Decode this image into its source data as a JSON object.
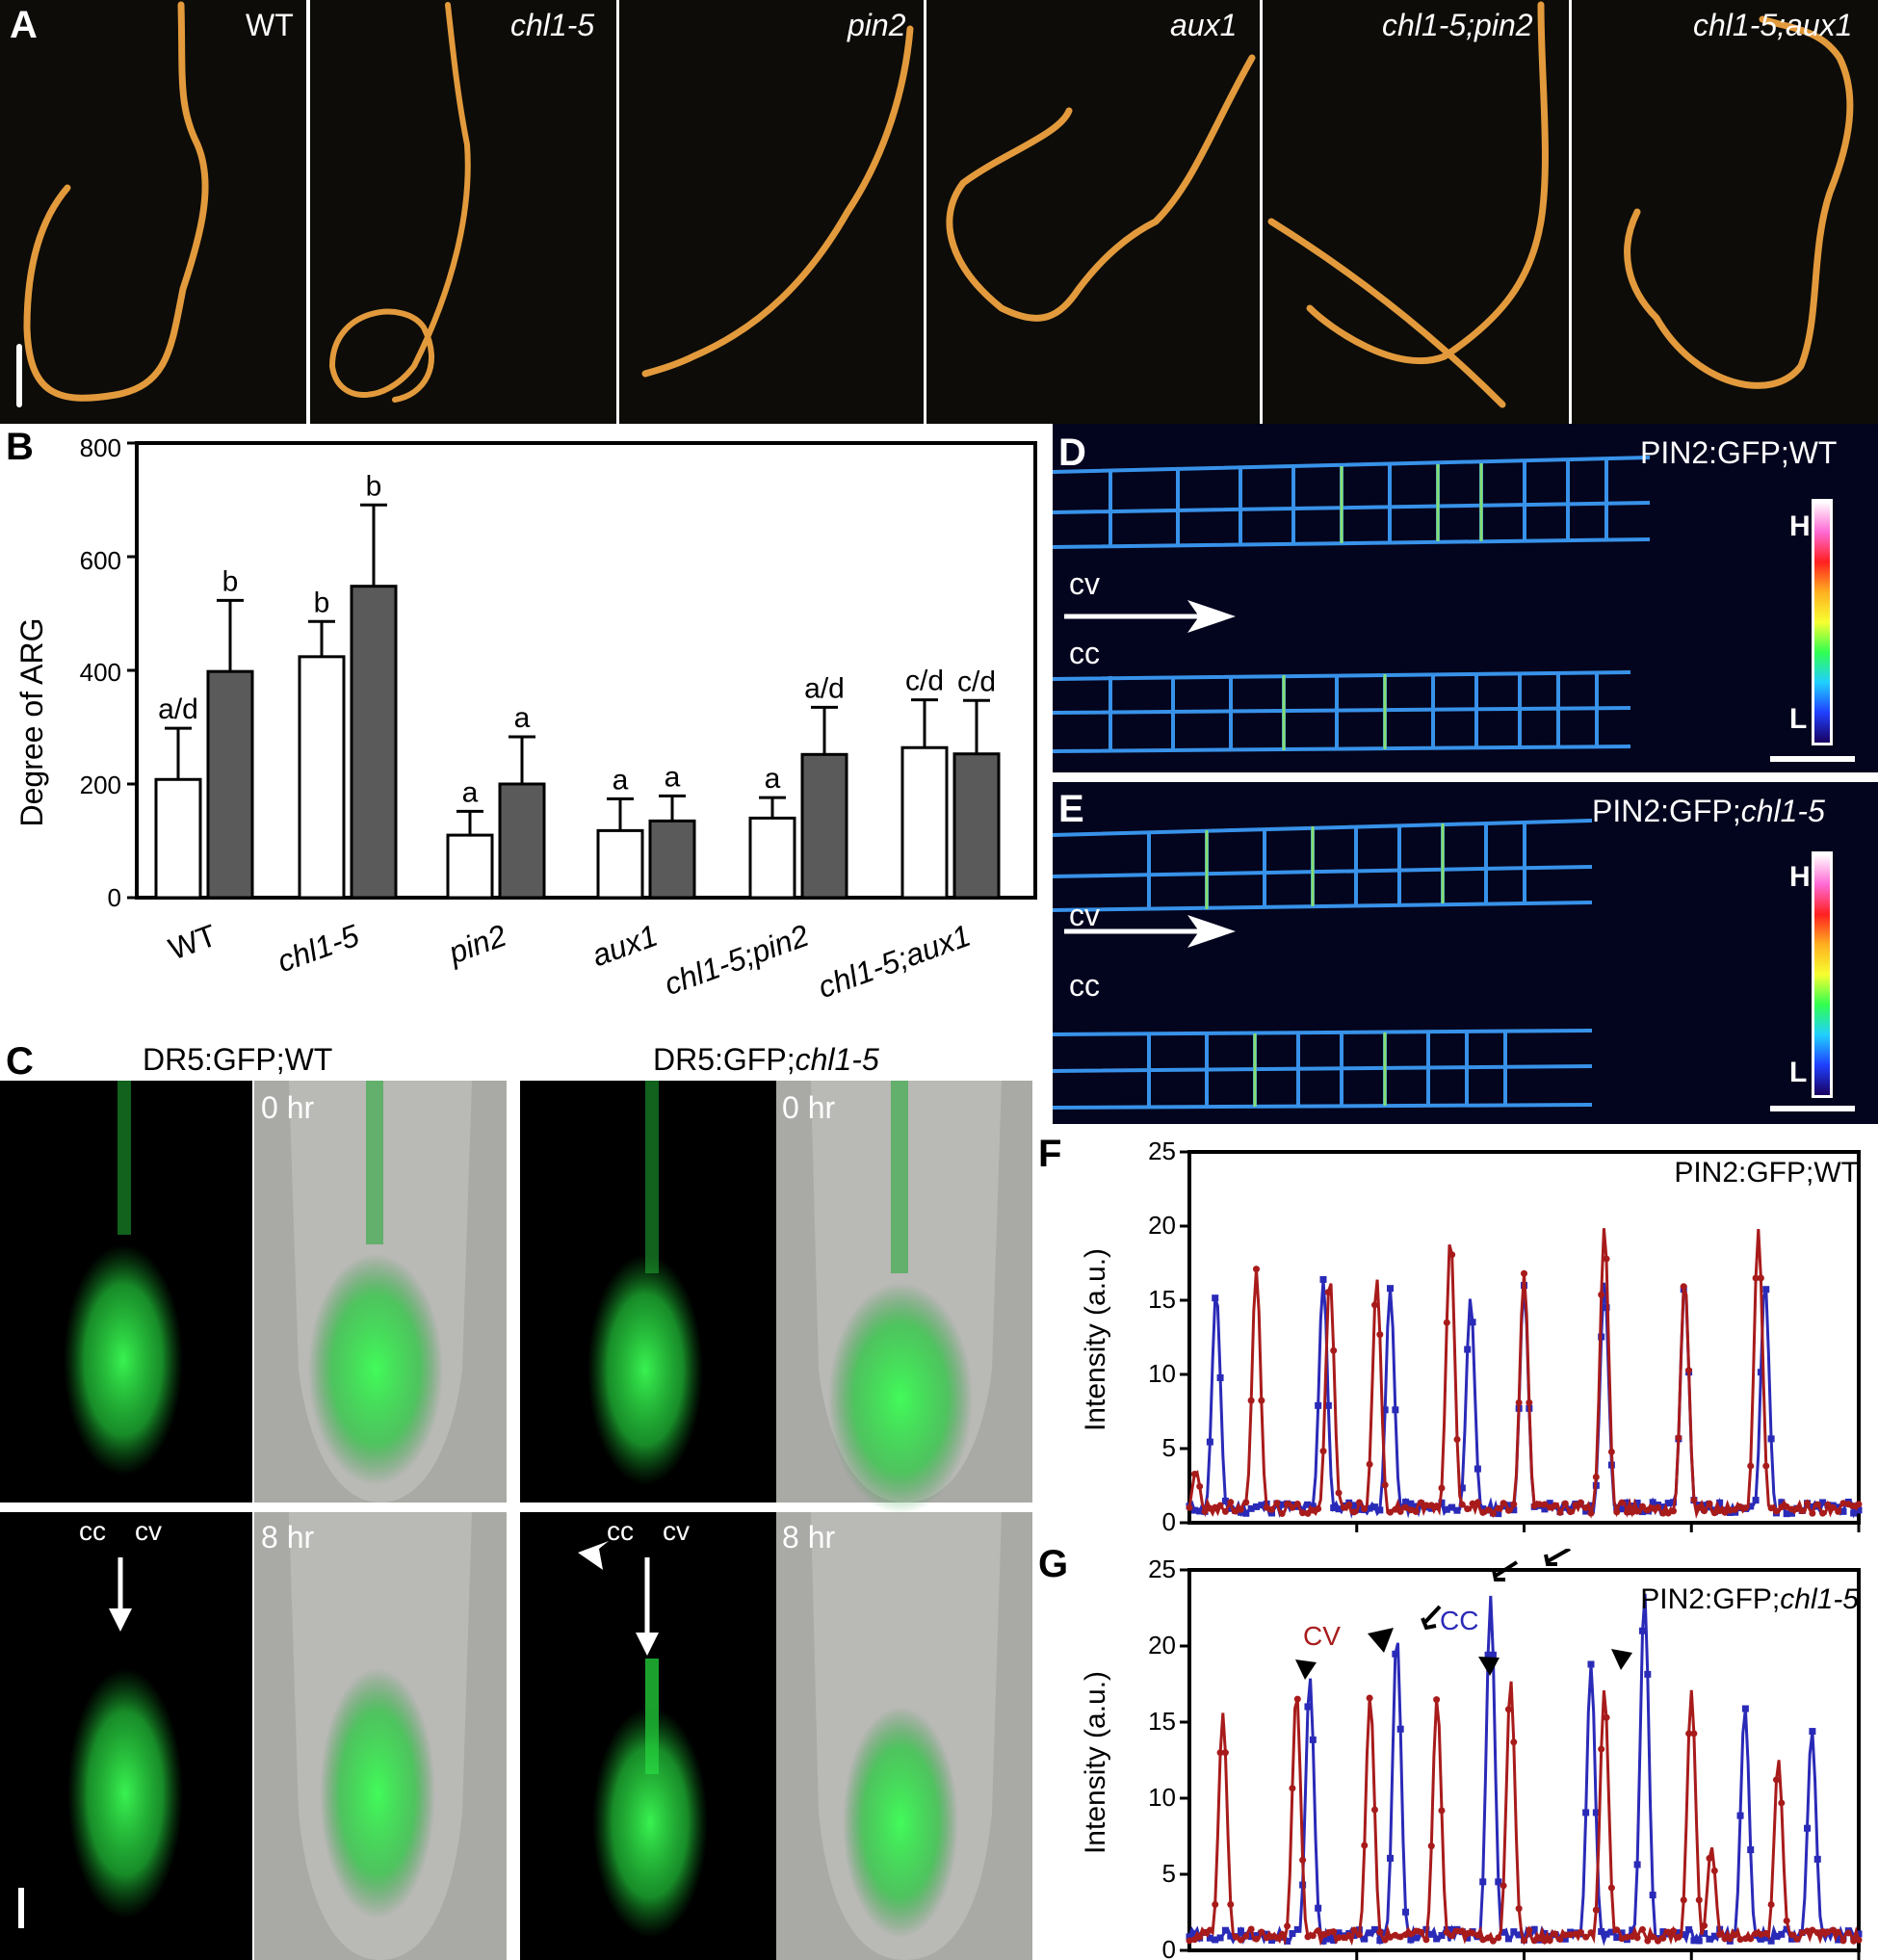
{
  "panel_a": {
    "letter": "A",
    "labels": [
      {
        "text": "WT",
        "italic": false
      },
      {
        "text": "chl1-5",
        "italic": true
      },
      {
        "text": "pin2",
        "italic": true
      },
      {
        "text": "aux1",
        "italic": true
      },
      {
        "text": "chl1-5;pin2",
        "italic": true
      },
      {
        "text": "chl1-5;aux1",
        "italic": true
      }
    ]
  },
  "panel_b": {
    "letter": "B",
    "ylabel": "Degree of ARG",
    "yticks": [
      "0",
      "200",
      "400",
      "600",
      "800"
    ],
    "categories": [
      {
        "label": "WT",
        "italic": false
      },
      {
        "label": "chl1-5",
        "italic": true
      },
      {
        "label": "pin2",
        "italic": true
      },
      {
        "label": "aux1",
        "italic": true
      },
      {
        "label": "chl1-5;pin2",
        "italic": true
      },
      {
        "label": "chl1-5;aux1",
        "italic": true
      }
    ]
  },
  "chart_data": [
    {
      "type": "bar",
      "ylabel": "Degree of ARG",
      "ylim": [
        0,
        800
      ],
      "categories": [
        "WT",
        "chl1-5",
        "pin2",
        "aux1",
        "chl1-5;pin2",
        "chl1-5;aux1"
      ],
      "series": [
        {
          "color": "#ffffff",
          "values": [
            208,
            424,
            110,
            118,
            140,
            264
          ],
          "errors": [
            90,
            62,
            42,
            56,
            36,
            84
          ],
          "letters": [
            "a/d",
            "b",
            "a",
            "a",
            "a",
            "c/d"
          ]
        },
        {
          "color": "#5a5a5a",
          "values": [
            398,
            548,
            200,
            135,
            252,
            253
          ],
          "errors": [
            125,
            143,
            83,
            44,
            83,
            94
          ],
          "letters": [
            "b",
            "b",
            "a",
            "a",
            "a/d",
            "c/d"
          ]
        }
      ]
    },
    {
      "type": "line",
      "title": "PIN2:GFP;WT",
      "ylabel": "Intensity (a.u.)",
      "ylim": [
        0,
        25
      ],
      "series": [
        {
          "color": "#2a2ab8",
          "marker": "square",
          "peaks": [
            [
              0.04,
              15.6
            ],
            [
              0.2,
              16.4
            ],
            [
              0.3,
              15.8
            ],
            [
              0.42,
              15.2
            ],
            [
              0.5,
              16
            ],
            [
              0.62,
              16.3
            ],
            [
              0.74,
              16.2
            ],
            [
              0.86,
              16.2
            ],
            [
              0.96,
              1.2
            ]
          ]
        },
        {
          "color": "#a81b1b",
          "marker": "circle",
          "peaks": [
            [
              0.01,
              3.5
            ],
            [
              0.1,
              17.1
            ],
            [
              0.21,
              16.6
            ],
            [
              0.28,
              16.5
            ],
            [
              0.39,
              19.3
            ],
            [
              0.5,
              16.8
            ],
            [
              0.62,
              20
            ],
            [
              0.74,
              16.4
            ],
            [
              0.85,
              19.8
            ]
          ]
        }
      ]
    },
    {
      "type": "line",
      "title": "PIN2:GFP;chl1-5",
      "ylabel": "Intensity (a.u.)",
      "ylim": [
        0,
        25
      ],
      "series": [
        {
          "name": "CC",
          "color": "#2a2ab8",
          "marker": "square",
          "peaks": [
            [
              0.18,
              18
            ],
            [
              0.31,
              20.8
            ],
            [
              0.45,
              23.3
            ],
            [
              0.6,
              18.8
            ],
            [
              0.68,
              23.6
            ],
            [
              0.83,
              16
            ],
            [
              0.93,
              14.5
            ]
          ]
        },
        {
          "name": "CV",
          "color": "#a81b1b",
          "marker": "circle",
          "peaks": [
            [
              0.05,
              15.6
            ],
            [
              0.16,
              17
            ],
            [
              0.27,
              16.7
            ],
            [
              0.37,
              16.6
            ],
            [
              0.48,
              17.8
            ],
            [
              0.62,
              17.2
            ],
            [
              0.75,
              17.1
            ],
            [
              0.78,
              6.8
            ],
            [
              0.88,
              12.6
            ]
          ]
        }
      ]
    }
  ],
  "panel_c": {
    "letter": "C",
    "title_wt": "DR5:GFP;WT",
    "title_mut_prefix": "DR5:GFP;",
    "title_mut_italic": "chl1-5",
    "time_0": "0 hr",
    "time_8": "8 hr",
    "cc": "cc",
    "cv": "cv"
  },
  "panel_d": {
    "letter": "D",
    "title": "PIN2:GFP;WT",
    "cv": "cv",
    "cc": "cc",
    "scale_high": "H",
    "scale_low": "L"
  },
  "panel_e": {
    "letter": "E",
    "title_prefix": "PIN2:GFP;",
    "title_italic": "chl1-5",
    "cv": "cv",
    "cc": "cc",
    "scale_high": "H",
    "scale_low": "L"
  },
  "panel_f": {
    "letter": "F",
    "title": "PIN2:GFP;WT",
    "ylabel": "Intensity (a.u.)",
    "yticks": [
      "0",
      "5",
      "10",
      "15",
      "20",
      "25"
    ]
  },
  "panel_g": {
    "letter": "G",
    "title_prefix": "PIN2:GFP;",
    "title_italic": "chl1-5",
    "ylabel": "Intensity (a.u.)",
    "yticks": [
      "0",
      "5",
      "10",
      "15",
      "20",
      "25"
    ],
    "label_cv": "CV",
    "label_cc": "CC"
  },
  "colors": {
    "red_series": "#a81b1b",
    "blue_series": "#2a2ab8",
    "bar_dark": "#5a5a5a",
    "gfp": "#22e03a",
    "root_orange": "#e29a3c"
  }
}
